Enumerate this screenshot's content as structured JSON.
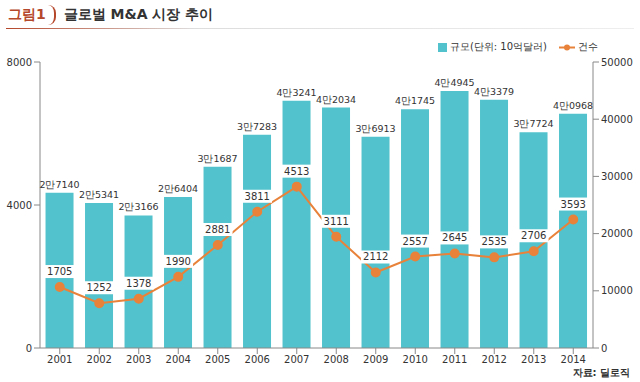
{
  "chart_data": {
    "type": "bar",
    "figure_label": "그림1",
    "title": "글로벌 M&A 시장 추이",
    "source": "자료: 딜로직",
    "categories": [
      "2001",
      "2002",
      "2003",
      "2004",
      "2005",
      "2006",
      "2007",
      "2008",
      "2009",
      "2010",
      "2011",
      "2012",
      "2013",
      "2014"
    ],
    "series": [
      {
        "name": "규모(단위: 10억달러)",
        "type": "bar",
        "axis": "y2",
        "color": "#52c3cc",
        "values": [
          27140,
          25341,
          23166,
          26404,
          31687,
          37283,
          43241,
          42034,
          36913,
          41745,
          44945,
          43379,
          37724,
          40968
        ],
        "value_labels": [
          "2만7140",
          "2만5341",
          "2만3166",
          "2만6404",
          "3만1687",
          "3만7283",
          "4만3241",
          "4만2034",
          "3만6913",
          "4만1745",
          "4만4945",
          "4만3379",
          "3만7724",
          "4만0968"
        ]
      },
      {
        "name": "건수",
        "type": "line",
        "axis": "y",
        "color": "#e8823a",
        "marker": "circle",
        "line_style": "solid",
        "values": [
          1705,
          1252,
          1378,
          1990,
          2881,
          3811,
          4513,
          3111,
          2112,
          2557,
          2645,
          2535,
          2706,
          3593
        ]
      }
    ],
    "ylim": [
      0,
      8000
    ],
    "yticks": [
      0,
      4000,
      8000
    ],
    "y2lim": [
      0,
      50000
    ],
    "y2ticks": [
      0,
      10000,
      20000,
      30000,
      40000,
      50000
    ],
    "data_labels": true,
    "legend": "top-right",
    "grid": false
  }
}
